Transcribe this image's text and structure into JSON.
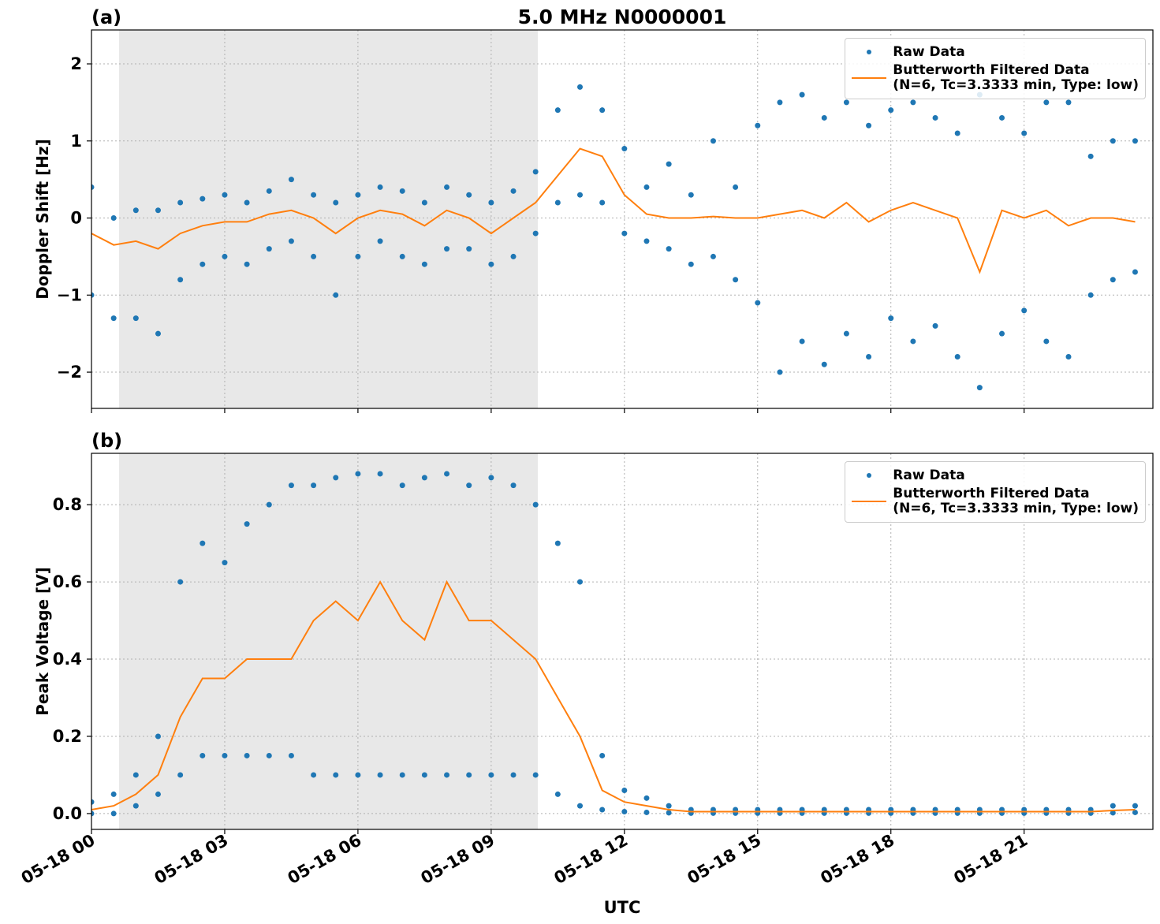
{
  "chart_data": [
    {
      "type": "scatter",
      "title": "5.0 MHz N0000001",
      "panel_label": "(a)",
      "ylabel": "Doppler Shift [Hz]",
      "xlim": [
        0,
        23.9
      ],
      "ylim": [
        -2.47,
        2.44
      ],
      "yticks": [
        {
          "value": -2,
          "label": "−2"
        },
        {
          "value": -1,
          "label": "−1"
        },
        0,
        1,
        2
      ],
      "grid": true,
      "legend": "upper right",
      "shaded_span": [
        0.62,
        10.05
      ],
      "series": [
        {
          "name": "Raw Data",
          "color": "#1f77b4",
          "marker": "point",
          "x": [
            0,
            0.5,
            1,
            1.5,
            2,
            2.5,
            3,
            3.5,
            4,
            4.5,
            5,
            5.5,
            6,
            6.5,
            7,
            7.5,
            8,
            8.5,
            9,
            9.5,
            10,
            10.5,
            11,
            11.5,
            12,
            12.5,
            13,
            13.5,
            14,
            14.5,
            15,
            15.5,
            16,
            16.5,
            17,
            17.5,
            18,
            18.5,
            19,
            19.5,
            20,
            20.5,
            21,
            21.5,
            22,
            22.5,
            23,
            23.5,
            0,
            0.5,
            1,
            1.5,
            2,
            2.5,
            3,
            3.5,
            4,
            4.5,
            5,
            5.5,
            6,
            6.5,
            7,
            7.5,
            8,
            8.5,
            9,
            9.5,
            10,
            10.5,
            11,
            11.5,
            12,
            12.5,
            13,
            13.5,
            14,
            14.5,
            15,
            15.5,
            16,
            16.5,
            17,
            17.5,
            18,
            18.5,
            19,
            19.5,
            20,
            20.5,
            21,
            21.5,
            22,
            22.5,
            23,
            23.5
          ],
          "values": [
            0.4,
            0.0,
            0.1,
            0.1,
            0.2,
            0.25,
            0.3,
            0.2,
            0.35,
            0.5,
            0.3,
            0.2,
            0.3,
            0.4,
            0.35,
            0.2,
            0.4,
            0.3,
            0.2,
            0.35,
            0.6,
            1.4,
            1.7,
            1.4,
            0.9,
            0.4,
            0.7,
            0.3,
            1.0,
            0.4,
            1.2,
            1.5,
            1.6,
            1.3,
            1.5,
            1.2,
            1.4,
            1.5,
            1.3,
            1.1,
            1.6,
            1.3,
            1.1,
            1.5,
            1.5,
            0.8,
            1.0,
            1.0,
            -1.0,
            -1.3,
            -1.3,
            -1.5,
            -0.8,
            -0.6,
            -0.5,
            -0.6,
            -0.4,
            -0.3,
            -0.5,
            -1.0,
            -0.5,
            -0.3,
            -0.5,
            -0.6,
            -0.4,
            -0.4,
            -0.6,
            -0.5,
            -0.2,
            0.2,
            0.3,
            0.2,
            -0.2,
            -0.3,
            -0.4,
            -0.6,
            -0.5,
            -0.8,
            -1.1,
            -2.0,
            -1.6,
            -1.9,
            -1.5,
            -1.8,
            -1.3,
            -1.6,
            -1.4,
            -1.8,
            -2.2,
            -1.5,
            -1.2,
            -1.6,
            -1.8,
            -1.0,
            -0.8,
            -0.7
          ]
        },
        {
          "name": "Butterworth Filtered Data\n(N=6, Tc=3.3333 min, Type: low)",
          "color": "#ff7f0e",
          "marker": "line",
          "x": [
            0,
            0.5,
            1,
            1.5,
            2,
            2.5,
            3,
            3.5,
            4,
            4.5,
            5,
            5.5,
            6,
            6.5,
            7,
            7.5,
            8,
            8.5,
            9,
            9.5,
            10,
            10.5,
            11,
            11.5,
            12,
            12.5,
            13,
            13.5,
            14,
            14.5,
            15,
            15.5,
            16,
            16.5,
            17,
            17.5,
            18,
            18.5,
            19,
            19.5,
            20,
            20.5,
            21,
            21.5,
            22,
            22.5,
            23,
            23.5
          ],
          "values": [
            -0.2,
            -0.35,
            -0.3,
            -0.4,
            -0.2,
            -0.1,
            -0.05,
            -0.05,
            0.05,
            0.1,
            0.0,
            -0.2,
            0.0,
            0.1,
            0.05,
            -0.1,
            0.1,
            0.0,
            -0.2,
            0.0,
            0.2,
            0.55,
            0.9,
            0.8,
            0.3,
            0.05,
            0.0,
            0.0,
            0.02,
            0.0,
            0.0,
            0.05,
            0.1,
            0.0,
            0.2,
            -0.05,
            0.1,
            0.2,
            0.1,
            0.0,
            -0.7,
            0.1,
            0.0,
            0.1,
            -0.1,
            0.0,
            0.0,
            -0.05
          ]
        }
      ]
    },
    {
      "type": "scatter",
      "panel_label": "(b)",
      "ylabel": "Peak Voltage [V]",
      "xlabel": "UTC",
      "xlim": [
        0,
        23.9
      ],
      "ylim": [
        -0.041,
        0.933
      ],
      "xticks": [
        {
          "value": 0,
          "label": "05-18 00"
        },
        {
          "value": 3,
          "label": "05-18 03"
        },
        {
          "value": 6,
          "label": "05-18 06"
        },
        {
          "value": 9,
          "label": "05-18 09"
        },
        {
          "value": 12,
          "label": "05-18 12"
        },
        {
          "value": 15,
          "label": "05-18 15"
        },
        {
          "value": 18,
          "label": "05-18 18"
        },
        {
          "value": 21,
          "label": "05-18 21"
        }
      ],
      "yticks": [
        {
          "value": 0,
          "label": "0.0"
        },
        0.2,
        0.4,
        0.6,
        0.8
      ],
      "grid": true,
      "legend": "upper right",
      "shaded_span": [
        0.62,
        10.05
      ],
      "series": [
        {
          "name": "Raw Data",
          "color": "#1f77b4",
          "marker": "point",
          "x": [
            0,
            0.5,
            1,
            1.5,
            2,
            2.5,
            3,
            3.5,
            4,
            4.5,
            5,
            5.5,
            6,
            6.5,
            7,
            7.5,
            8,
            8.5,
            9,
            9.5,
            10,
            10.5,
            11,
            11.5,
            12,
            12.5,
            13,
            13.5,
            14,
            14.5,
            15,
            15.5,
            16,
            16.5,
            17,
            17.5,
            18,
            18.5,
            19,
            19.5,
            20,
            20.5,
            21,
            21.5,
            22,
            22.5,
            23,
            23.5,
            0,
            0.5,
            1,
            1.5,
            2,
            2.5,
            3,
            3.5,
            4,
            4.5,
            5,
            5.5,
            6,
            6.5,
            7,
            7.5,
            8,
            8.5,
            9,
            9.5,
            10,
            10.5,
            11,
            11.5,
            12,
            12.5,
            13,
            13.5,
            14,
            14.5,
            15,
            15.5,
            16,
            16.5,
            17,
            17.5,
            18,
            18.5,
            19,
            19.5,
            20,
            20.5,
            21,
            21.5,
            22,
            22.5,
            23,
            23.5
          ],
          "values": [
            0.03,
            0.05,
            0.1,
            0.2,
            0.6,
            0.7,
            0.65,
            0.75,
            0.8,
            0.85,
            0.85,
            0.87,
            0.88,
            0.88,
            0.85,
            0.87,
            0.88,
            0.85,
            0.87,
            0.85,
            0.8,
            0.7,
            0.6,
            0.15,
            0.06,
            0.04,
            0.02,
            0.01,
            0.01,
            0.01,
            0.01,
            0.01,
            0.01,
            0.01,
            0.01,
            0.01,
            0.01,
            0.01,
            0.01,
            0.01,
            0.01,
            0.01,
            0.01,
            0.01,
            0.01,
            0.01,
            0.02,
            0.02,
            0,
            0,
            0.02,
            0.05,
            0.1,
            0.15,
            0.15,
            0.15,
            0.15,
            0.15,
            0.1,
            0.1,
            0.1,
            0.1,
            0.1,
            0.1,
            0.1,
            0.1,
            0.1,
            0.1,
            0.1,
            0.05,
            0.02,
            0.01,
            0.005,
            0.003,
            0.002,
            0.001,
            0.001,
            0.001,
            0.001,
            0.001,
            0.001,
            0.001,
            0.001,
            0.001,
            0.001,
            0.001,
            0.001,
            0.001,
            0.001,
            0.001,
            0.001,
            0.001,
            0.001,
            0.001,
            0.002,
            0.003
          ]
        },
        {
          "name": "Butterworth Filtered Data\n(N=6, Tc=3.3333 min, Type: low)",
          "color": "#ff7f0e",
          "marker": "line",
          "x": [
            0,
            0.5,
            1,
            1.5,
            2,
            2.5,
            3,
            3.5,
            4,
            4.5,
            5,
            5.5,
            6,
            6.5,
            7,
            7.5,
            8,
            8.5,
            9,
            9.5,
            10,
            10.5,
            11,
            11.5,
            12,
            12.5,
            13,
            13.5,
            14,
            14.5,
            15,
            15.5,
            16,
            16.5,
            17,
            17.5,
            18,
            18.5,
            19,
            19.5,
            20,
            20.5,
            21,
            21.5,
            22,
            22.5,
            23,
            23.5
          ],
          "values": [
            0.01,
            0.02,
            0.05,
            0.1,
            0.25,
            0.35,
            0.35,
            0.4,
            0.4,
            0.4,
            0.5,
            0.55,
            0.5,
            0.6,
            0.5,
            0.45,
            0.6,
            0.5,
            0.5,
            0.45,
            0.4,
            0.3,
            0.2,
            0.06,
            0.03,
            0.02,
            0.01,
            0.005,
            0.005,
            0.005,
            0.005,
            0.005,
            0.005,
            0.005,
            0.005,
            0.005,
            0.005,
            0.005,
            0.005,
            0.005,
            0.005,
            0.005,
            0.005,
            0.005,
            0.005,
            0.005,
            0.008,
            0.01
          ]
        }
      ]
    }
  ]
}
